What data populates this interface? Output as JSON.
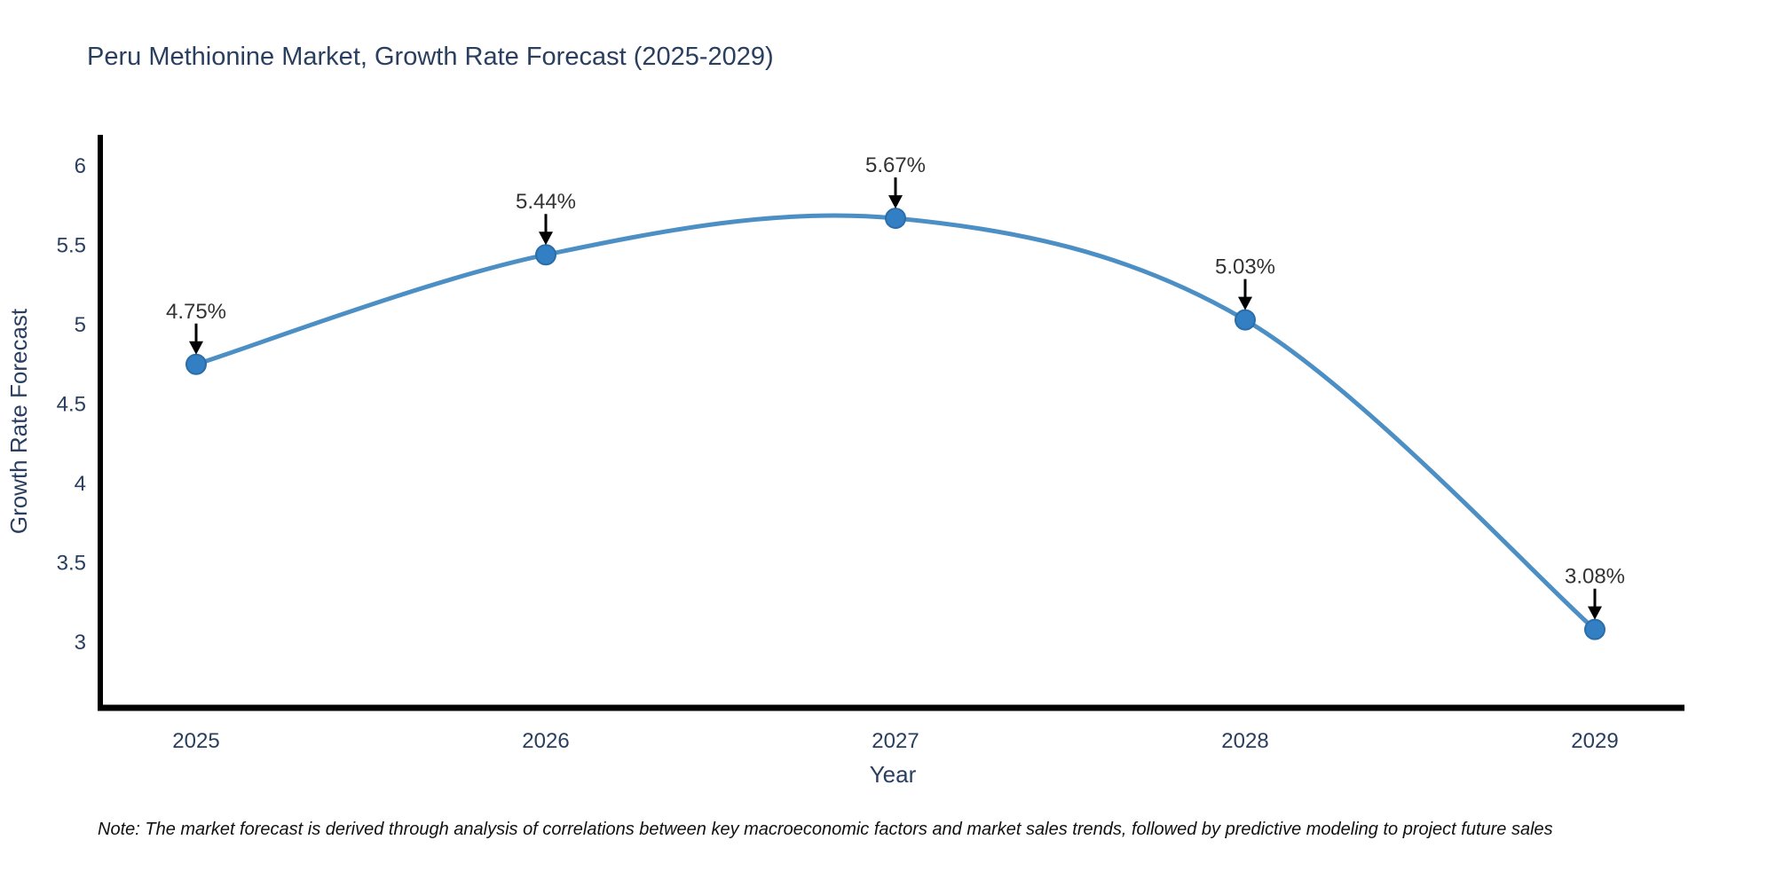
{
  "chart_data": {
    "type": "line",
    "title": "Peru Methionine Market, Growth Rate Forecast (2025-2029)",
    "xlabel": "Year",
    "ylabel": "Growth Rate Forecast",
    "x": [
      2025,
      2026,
      2027,
      2028,
      2029
    ],
    "categories": [
      "2025",
      "2026",
      "2027",
      "2028",
      "2029"
    ],
    "values": [
      4.75,
      5.44,
      5.67,
      5.03,
      3.08
    ],
    "point_labels": [
      "4.75%",
      "5.44%",
      "5.67%",
      "5.03%",
      "3.08%"
    ],
    "yticks": [
      "6",
      "5.5",
      "5",
      "4.5",
      "4",
      "3.5",
      "3"
    ],
    "ytick_values": [
      6,
      5.5,
      5,
      4.5,
      4,
      3.5,
      3
    ],
    "ylim": [
      2.58,
      6.2
    ],
    "line_shape": "spline",
    "grid": false,
    "legend": "none",
    "annotations": "each point labeled with percent value and downward black arrow",
    "note": "Note: The market forecast is derived through analysis of correlations between key macroeconomic factors and market sales trends, followed by predictive modeling to project future sales",
    "colors": {
      "line": "#4c8fc4",
      "marker_fill": "#327fc4",
      "marker_edge": "#2a6da8",
      "axis_line": "#000000",
      "tick_text": "#2a3f5f",
      "title_text": "#2a3f5f",
      "annotation_text": "#333333",
      "arrow": "#000000",
      "background": "#ffffff"
    }
  }
}
